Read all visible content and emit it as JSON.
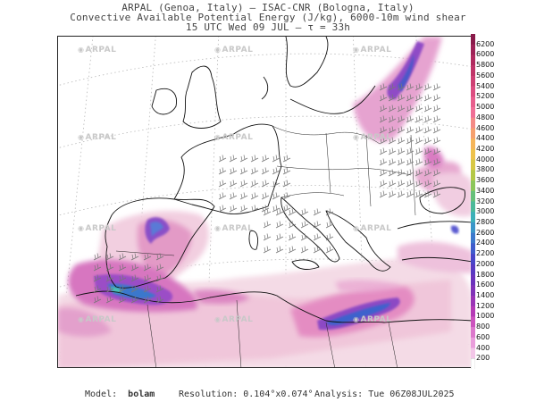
{
  "header": {
    "line1": "ARPAL (Genoa, Italy) – ISAC-CNR (Bologna, Italy)",
    "line2": "Convective Available Potential Energy (J/kg), 6000-10m wind shear",
    "line3": "15 UTC Wed 09 JUL – τ = 33h"
  },
  "watermark": "ARPAL",
  "colorbar": {
    "labels": [
      "6200",
      "6000",
      "5800",
      "5600",
      "5400",
      "5200",
      "5000",
      "4800",
      "4600",
      "4400",
      "4200",
      "4000",
      "3800",
      "3600",
      "3400",
      "3200",
      "3000",
      "2800",
      "2600",
      "2400",
      "2200",
      "2000",
      "1800",
      "1600",
      "1400",
      "1200",
      "1000",
      "800",
      "600",
      "400",
      "200"
    ],
    "colors": [
      "#8a1a4a",
      "#9e2256",
      "#b02a5e",
      "#c03468",
      "#ce3f73",
      "#dc4d80",
      "#e85e8d",
      "#f06f96",
      "#f48a86",
      "#f6a06e",
      "#f5b55a",
      "#eec24c",
      "#d8c845",
      "#b4c846",
      "#8cc65a",
      "#66c07a",
      "#4bb99a",
      "#3cb0b8",
      "#3a96c8",
      "#3b78cc",
      "#3f5ccc",
      "#4844c8",
      "#5838c2",
      "#6b32bc",
      "#8032b8",
      "#9a34b6",
      "#b53ab6",
      "#cc52be",
      "#dc78cc",
      "#ea9edc",
      "#f3c6e8",
      "#ffffff"
    ]
  },
  "footer": {
    "model_label": "Model:",
    "model_value": "bolam",
    "resolution": "Resolution: 0.104°x0.074°",
    "analysis": "Analysis: Tue 06Z08JUL2025"
  }
}
